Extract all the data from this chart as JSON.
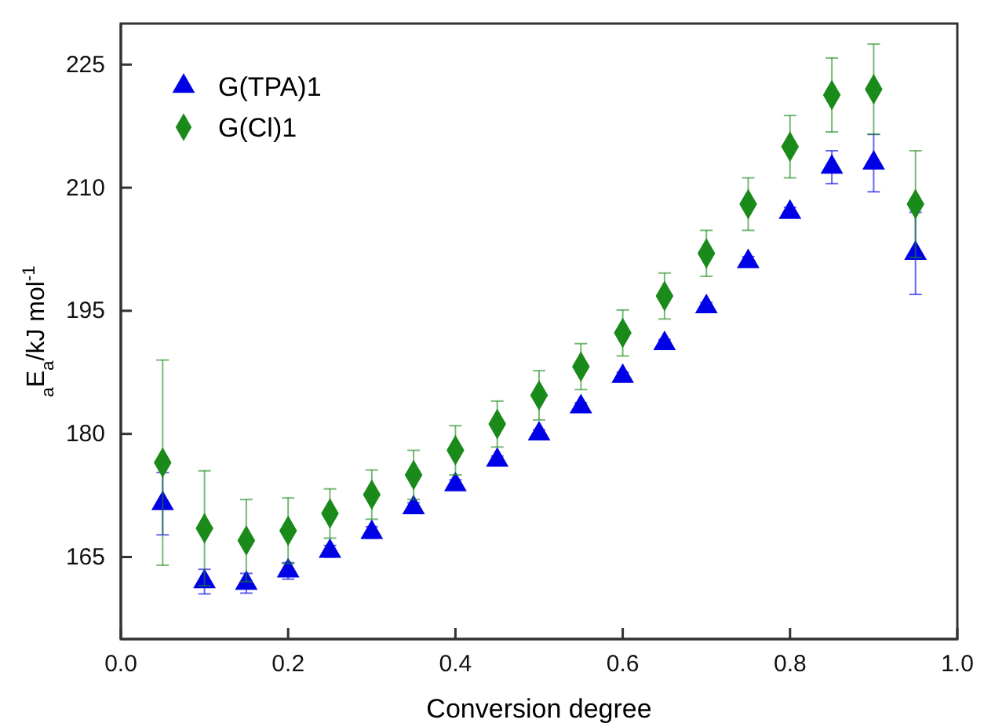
{
  "chart_data": {
    "type": "scatter",
    "xlabel": "Conversion degree",
    "ylabel": "$_{a}$E$_{a}$/kJ mol$^{-1}$",
    "x": [
      0.05,
      0.1,
      0.15,
      0.2,
      0.25,
      0.3,
      0.35,
      0.4,
      0.45,
      0.5,
      0.55,
      0.6,
      0.65,
      0.7,
      0.75,
      0.8,
      0.85,
      0.9,
      0.95
    ],
    "series": [
      {
        "name": "G(TPA)1",
        "color": "#0000e6",
        "marker": "triangle",
        "values": [
          171.5,
          162,
          161.8,
          163.3,
          165.7,
          168,
          171,
          173.8,
          176.8,
          180,
          183.3,
          187,
          191,
          195.5,
          201,
          207,
          212.5,
          213,
          202
        ],
        "errors": [
          3.8,
          1.5,
          1.2,
          1,
          0.7,
          0.7,
          0.6,
          0.6,
          0.5,
          0.5,
          0.5,
          0.5,
          0.5,
          0.5,
          0.6,
          0.6,
          2,
          3.5,
          5
        ]
      },
      {
        "name": "G(Cl)1",
        "color": "#1a8a1a",
        "marker": "diamond",
        "values": [
          176.5,
          168.5,
          167,
          168.2,
          170.3,
          172.6,
          175,
          178,
          181.2,
          184.7,
          188.2,
          192.3,
          196.8,
          202,
          208,
          215,
          221.3,
          222,
          208
        ],
        "errors": [
          12.5,
          7,
          5,
          4,
          3,
          3,
          3,
          3,
          2.8,
          3,
          2.8,
          2.8,
          2.8,
          2.8,
          3.2,
          3.8,
          4.5,
          5.5,
          6.5
        ]
      }
    ],
    "xlim": [
      0,
      1
    ],
    "xticks": [
      {
        "value": 0,
        "label": "0.0"
      },
      0.2,
      0.4,
      0.6,
      0.8,
      {
        "value": 1,
        "label": "1.0"
      }
    ],
    "ylim": [
      155,
      230
    ],
    "yticks": [
      165,
      180,
      195,
      210,
      225
    ],
    "grid": false,
    "legend": "top left"
  }
}
